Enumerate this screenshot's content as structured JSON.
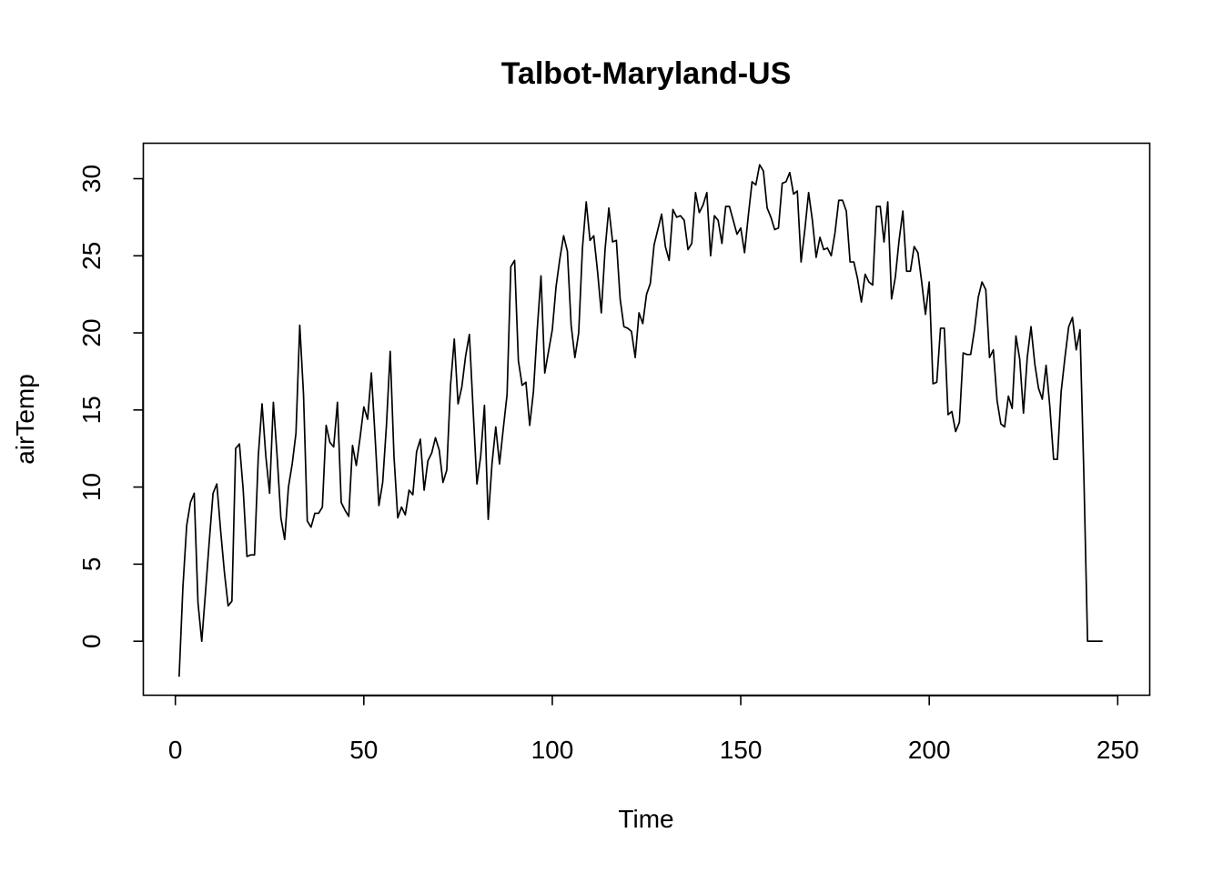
{
  "chart_data": {
    "type": "line",
    "title": "Talbot-Maryland-US",
    "xlabel": "Time",
    "ylabel": "airTemp",
    "xlim": [
      -8.5,
      258.5
    ],
    "ylim": [
      -3.5,
      32.3
    ],
    "x_ticks": [
      0,
      50,
      100,
      150,
      200,
      250
    ],
    "y_ticks": [
      0,
      5,
      10,
      15,
      20,
      25,
      30
    ],
    "grid": false,
    "legend": "none",
    "line_color": "#000000",
    "series": [
      {
        "x_start": 1,
        "values": [
          -2.3,
          3.5,
          7.5,
          9.0,
          9.6,
          2.5,
          0.0,
          3.2,
          6.5,
          9.6,
          10.2,
          7.2,
          4.5,
          2.3,
          2.6,
          12.5,
          12.8,
          9.8,
          5.5,
          5.6,
          5.6,
          12.0,
          15.4,
          12.0,
          9.6,
          15.5,
          12.0,
          8.0,
          6.6,
          10.0,
          11.5,
          13.5,
          20.5,
          16.0,
          7.8,
          7.4,
          8.3,
          8.3,
          8.7,
          14.0,
          12.9,
          12.6,
          15.5,
          9.0,
          8.5,
          8.1,
          12.7,
          11.4,
          13.2,
          15.2,
          14.4,
          17.4,
          13.2,
          8.8,
          10.3,
          14.0,
          18.8,
          12.0,
          8.0,
          8.7,
          8.2,
          9.8,
          9.5,
          12.3,
          13.1,
          9.8,
          11.7,
          12.2,
          13.2,
          12.4,
          10.3,
          11.1,
          16.6,
          19.6,
          15.4,
          16.5,
          18.5,
          19.9,
          15.0,
          10.2,
          12.0,
          15.3,
          7.9,
          11.5,
          13.9,
          11.5,
          13.8,
          16.0,
          24.3,
          24.7,
          18.2,
          16.6,
          16.8,
          14.0,
          16.2,
          20.2,
          23.7,
          17.4,
          18.8,
          20.2,
          23.0,
          24.8,
          26.3,
          25.3,
          20.5,
          18.4,
          20.0,
          25.5,
          28.5,
          26.0,
          26.3,
          24.0,
          21.3,
          25.4,
          28.1,
          25.9,
          26.0,
          22.2,
          20.4,
          20.3,
          20.1,
          18.4,
          21.3,
          20.6,
          22.5,
          23.2,
          25.7,
          26.7,
          27.7,
          25.6,
          24.7,
          28.0,
          27.5,
          27.6,
          27.3,
          25.4,
          25.8,
          29.1,
          27.8,
          28.3,
          29.1,
          25.0,
          27.6,
          27.3,
          25.8,
          28.2,
          28.2,
          27.3,
          26.4,
          26.8,
          25.2,
          27.6,
          29.8,
          29.6,
          30.9,
          30.5,
          28.1,
          27.5,
          26.7,
          26.8,
          29.7,
          29.8,
          30.4,
          29.0,
          29.2,
          24.6,
          26.7,
          29.1,
          27.3,
          24.9,
          26.2,
          25.4,
          25.5,
          25.0,
          26.5,
          28.6,
          28.6,
          27.9,
          24.6,
          24.6,
          23.5,
          22.0,
          23.8,
          23.3,
          23.1,
          28.2,
          28.2,
          25.9,
          28.5,
          22.2,
          23.6,
          26.0,
          27.9,
          24.0,
          24.0,
          25.6,
          25.2,
          23.3,
          21.2,
          23.3,
          16.7,
          16.8,
          20.3,
          20.3,
          14.7,
          14.9,
          13.6,
          14.2,
          18.7,
          18.6,
          18.6,
          20.2,
          22.3,
          23.3,
          22.8,
          18.4,
          18.9,
          15.6,
          14.1,
          13.9,
          15.9,
          15.1,
          19.8,
          18.3,
          14.8,
          18.4,
          20.4,
          18.0,
          16.4,
          15.7,
          17.9,
          15.2,
          11.8,
          11.8,
          16.2,
          18.4,
          20.4,
          21.0,
          18.9,
          20.2,
          11.0,
          0.0,
          0.0,
          0.0,
          0.0,
          0.0
        ]
      }
    ]
  }
}
